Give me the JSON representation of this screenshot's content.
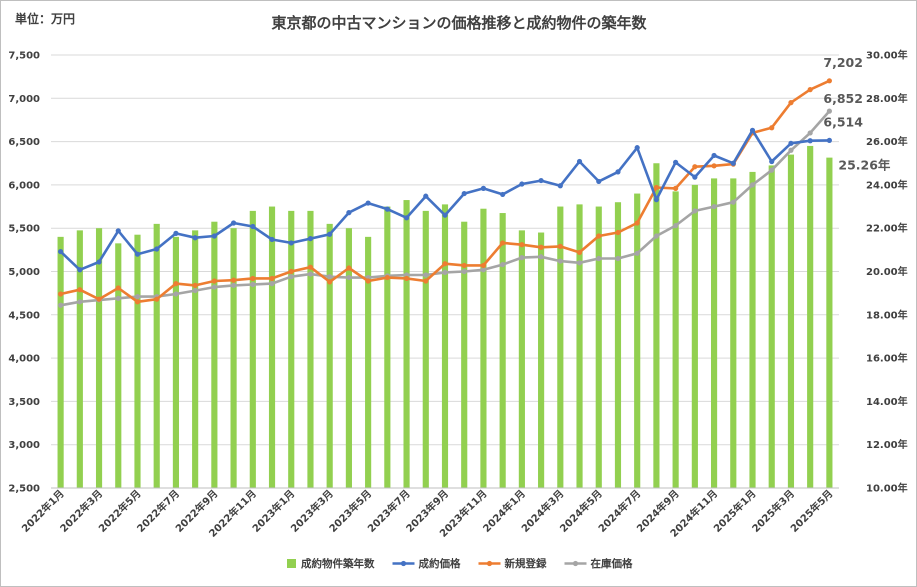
{
  "chart_data": {
    "type": "bar+line",
    "title": "東京都の中古マンションの価格推移と成約物件の築年数",
    "unit_label": "単位：万円",
    "categories": [
      "2022年1月",
      "2022年2月",
      "2022年3月",
      "2022年4月",
      "2022年5月",
      "2022年6月",
      "2022年7月",
      "2022年8月",
      "2022年9月",
      "2022年10月",
      "2022年11月",
      "2022年12月",
      "2023年1月",
      "2023年2月",
      "2023年3月",
      "2023年4月",
      "2023年5月",
      "2023年6月",
      "2023年7月",
      "2023年8月",
      "2023年9月",
      "2023年10月",
      "2023年11月",
      "2023年12月",
      "2024年1月",
      "2024年2月",
      "2024年3月",
      "2024年4月",
      "2024年5月",
      "2024年6月",
      "2024年7月",
      "2024年8月",
      "2024年9月",
      "2024年10月",
      "2024年11月",
      "2024年12月",
      "2025年1月",
      "2025年2月",
      "2025年3月",
      "2025年4月",
      "2025年5月"
    ],
    "x_tick_labels": [
      "2022年1月",
      "2022年3月",
      "2022年5月",
      "2022年7月",
      "2022年9月",
      "2022年11月",
      "2023年1月",
      "2023年3月",
      "2023年5月",
      "2023年7月",
      "2023年9月",
      "2023年11月",
      "2024年1月",
      "2024年3月",
      "2024年5月",
      "2024年7月",
      "2024年9月",
      "2024年11月",
      "2025年1月",
      "2025年3月",
      "2025年5月"
    ],
    "y_left": {
      "min": 2500,
      "max": 7500,
      "step": 500,
      "tick_labels": [
        "2,500",
        "3,000",
        "3,500",
        "4,000",
        "4,500",
        "5,000",
        "5,500",
        "6,000",
        "6,500",
        "7,000",
        "7,500"
      ]
    },
    "y_right": {
      "min": 10,
      "max": 30,
      "step": 2,
      "tick_labels": [
        "10.00年",
        "12.00年",
        "14.00年",
        "16.00年",
        "18.00年",
        "20.00年",
        "22.00年",
        "24.00年",
        "26.00年",
        "28.00年",
        "30.00年"
      ]
    },
    "series": [
      {
        "name": "成約物件築年数",
        "type": "bar",
        "axis": "right",
        "color": "#92D050",
        "values": [
          21.6,
          21.9,
          22.0,
          21.3,
          21.7,
          22.2,
          21.6,
          21.9,
          22.3,
          22.0,
          22.8,
          23.0,
          22.8,
          22.8,
          22.2,
          22.0,
          21.6,
          23.0,
          23.3,
          22.8,
          23.1,
          22.3,
          22.9,
          22.7,
          21.9,
          21.8,
          23.0,
          23.1,
          23.0,
          23.2,
          23.6,
          25.0,
          23.7,
          24.0,
          24.3,
          24.3,
          24.6,
          24.9,
          25.4,
          25.8,
          25.26
        ]
      },
      {
        "name": "成約価格",
        "type": "line",
        "axis": "left",
        "color": "#4472C4",
        "values": [
          5230,
          5020,
          5110,
          5470,
          5200,
          5260,
          5440,
          5390,
          5410,
          5560,
          5520,
          5370,
          5330,
          5380,
          5430,
          5680,
          5790,
          5720,
          5620,
          5870,
          5650,
          5900,
          5960,
          5890,
          6010,
          6050,
          5990,
          6270,
          6040,
          6150,
          6430,
          5830,
          6260,
          6090,
          6340,
          6250,
          6630,
          6270,
          6480,
          6510,
          6514
        ]
      },
      {
        "name": "新規登録",
        "type": "line",
        "axis": "left",
        "color": "#ED7D31",
        "values": [
          4740,
          4790,
          4680,
          4810,
          4650,
          4680,
          4860,
          4840,
          4890,
          4900,
          4920,
          4920,
          5000,
          5050,
          4880,
          5040,
          4890,
          4930,
          4920,
          4890,
          5090,
          5070,
          5070,
          5330,
          5310,
          5280,
          5290,
          5220,
          5410,
          5450,
          5560,
          5970,
          5960,
          6210,
          6220,
          6240,
          6600,
          6660,
          6950,
          7100,
          7202
        ]
      },
      {
        "name": "在庫価格",
        "type": "line",
        "axis": "left",
        "color": "#A5A5A5",
        "values": [
          4610,
          4650,
          4670,
          4690,
          4710,
          4710,
          4740,
          4780,
          4820,
          4840,
          4850,
          4860,
          4940,
          4970,
          4940,
          4930,
          4930,
          4950,
          4960,
          4960,
          4990,
          5000,
          5020,
          5080,
          5160,
          5170,
          5120,
          5100,
          5150,
          5150,
          5210,
          5410,
          5530,
          5700,
          5750,
          5800,
          6000,
          6170,
          6400,
          6600,
          6852
        ]
      }
    ],
    "data_labels": {
      "新規登録_last": "7,202",
      "在庫価格_last": "6,852",
      "成約価格_last": "6,514",
      "築年数_last": "25.26年"
    },
    "legend": [
      "成約物件築年数",
      "成約価格",
      "新規登録",
      "在庫価格"
    ],
    "legend_position": "bottom"
  }
}
